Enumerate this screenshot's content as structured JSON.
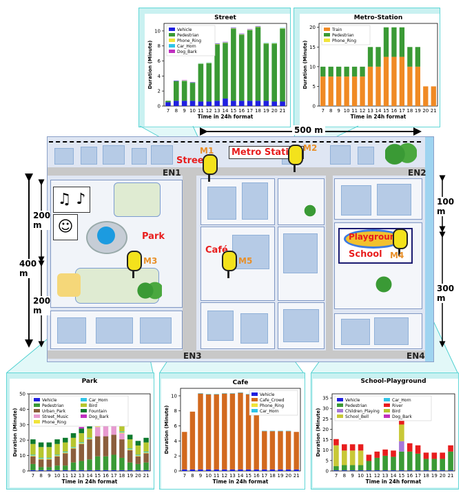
{
  "colors": {
    "vehicle": "#1f1fe0",
    "pedestrian": "#3a9a35",
    "phone_ring": "#f0e43a",
    "car_horn": "#2fc4e8",
    "dog_bark": "#c02fc0",
    "train": "#f08a24",
    "urban_park": "#8b5e3c",
    "street_music": "#e79ad0",
    "bird": "#b6c62f",
    "fountain": "#0e7a2e",
    "cafe_crowd": "#d2691e",
    "children_playing": "#a678d8",
    "school_bell": "#c8c836",
    "river": "#e81d1d"
  },
  "map": {
    "width_label": "500 m",
    "total_height_label": "400\nm",
    "h200a": "200\nm",
    "h200b": "200\nm",
    "h100": "100\nm",
    "h300": "300\nm",
    "en1": "EN1",
    "en2": "EN2",
    "en3": "EN3",
    "en4": "EN4",
    "street": "Street",
    "metro": "Metro Station",
    "park": "Park",
    "cafe": "Café",
    "playground": "Playground",
    "school": "School",
    "m1": "M1",
    "m2": "M2",
    "m3": "M3",
    "m4": "M4",
    "m5": "M5"
  },
  "chart_data": [
    {
      "id": "street",
      "type": "bar",
      "title": "Street",
      "xlabel": "Time in 24h format",
      "ylabel": "Duration (Minute)",
      "categories": [
        "7",
        "8",
        "9",
        "10",
        "11",
        "12",
        "13",
        "14",
        "15",
        "16",
        "17",
        "18",
        "19",
        "20",
        "21"
      ],
      "ylim": [
        0,
        11
      ],
      "yticks": [
        "0",
        "2",
        "4",
        "6",
        "8",
        "10"
      ],
      "series": [
        {
          "name": "Vehicle",
          "color": "#1f1fe0",
          "values": [
            0.5,
            0.7,
            0.7,
            0.7,
            0.6,
            0.6,
            0.7,
            1.0,
            0.7,
            0.7,
            0.7,
            0.7,
            0.7,
            0.6,
            0.6
          ]
        },
        {
          "name": "Pedestrian",
          "color": "#3a9a35",
          "values": [
            0.2,
            2.6,
            2.6,
            2.4,
            5.0,
            5.1,
            7.5,
            7.4,
            9.6,
            8.8,
            9.4,
            9.8,
            7.6,
            7.7,
            9.7
          ]
        },
        {
          "name": "Phone_Ring",
          "color": "#f0e43a",
          "values": [
            0,
            0,
            0.05,
            0,
            0.05,
            0.05,
            0.05,
            0.05,
            0.05,
            0.05,
            0.05,
            0.05,
            0.05,
            0.05,
            0.05
          ]
        },
        {
          "name": "Car_Horn",
          "color": "#2fc4e8",
          "values": [
            0,
            0.05,
            0.05,
            0.05,
            0.05,
            0.05,
            0.05,
            0.05,
            0.05,
            0.05,
            0.05,
            0.05,
            0.05,
            0.05,
            0.05
          ]
        },
        {
          "name": "Dog_Bark",
          "color": "#c02fc0",
          "values": [
            0,
            0.05,
            0.05,
            0.05,
            0,
            0,
            0.05,
            0.05,
            0.05,
            0.05,
            0.05,
            0.05,
            0,
            0,
            0
          ]
        }
      ]
    },
    {
      "id": "metro",
      "type": "bar",
      "title": "Metro-Station",
      "xlabel": "Time in 24h format",
      "ylabel": "Duration (Minute)",
      "categories": [
        "7",
        "8",
        "9",
        "10",
        "11",
        "12",
        "13",
        "14",
        "15",
        "16",
        "17",
        "18",
        "19",
        "20",
        "21"
      ],
      "ylim": [
        0,
        21
      ],
      "yticks": [
        "0",
        "5",
        "10",
        "15",
        "20"
      ],
      "series": [
        {
          "name": "Train",
          "color": "#f08a24",
          "values": [
            7.5,
            7.5,
            7.5,
            7.5,
            7.5,
            7.5,
            10,
            10,
            12.5,
            12.5,
            12.5,
            10,
            10,
            5,
            5
          ]
        },
        {
          "name": "Pedestrian",
          "color": "#3a9a35",
          "values": [
            2.5,
            2.5,
            2.5,
            2.5,
            2.5,
            2.5,
            5,
            5,
            7.5,
            7.5,
            7.5,
            5,
            5,
            0,
            0
          ]
        },
        {
          "name": "Phone_Ring",
          "color": "#f0e43a",
          "values": [
            0,
            0,
            0,
            0,
            0,
            0,
            0,
            0,
            0,
            0,
            0,
            0,
            0,
            0,
            0
          ]
        }
      ]
    },
    {
      "id": "park",
      "type": "bar",
      "title": "Park",
      "xlabel": "Time in 24h format",
      "ylabel": "Duration (Minute)",
      "categories": [
        "7",
        "8",
        "9",
        "10",
        "11",
        "12",
        "13",
        "14",
        "15",
        "16",
        "17",
        "18",
        "19",
        "20",
        "21"
      ],
      "ylim": [
        0,
        50
      ],
      "yticks": [
        "0",
        "10",
        "20",
        "30",
        "40",
        "50"
      ],
      "series": [
        {
          "name": "Vehicle",
          "color": "#1f1fe0",
          "values": [
            0.5,
            0.5,
            0.5,
            0.5,
            0.5,
            0.5,
            0.5,
            0.5,
            0.5,
            0.5,
            0.5,
            0.5,
            0.5,
            0.5,
            0.5
          ]
        },
        {
          "name": "Pedestrian",
          "color": "#3a9a35",
          "values": [
            4,
            2,
            2,
            3,
            3,
            5,
            6,
            7,
            9,
            9,
            10,
            8,
            5,
            4,
            5
          ]
        },
        {
          "name": "Urban_Park",
          "color": "#8b5e3c",
          "values": [
            5,
            5,
            5,
            6,
            8,
            9,
            11,
            13,
            13,
            13,
            13,
            12,
            8,
            5,
            6
          ]
        },
        {
          "name": "Street_Music",
          "color": "#e79ad0",
          "values": [
            0,
            0,
            0,
            0,
            0,
            0,
            0,
            0,
            6,
            8,
            8,
            4,
            0,
            0,
            0
          ]
        },
        {
          "name": "Phone_Ring",
          "color": "#f0e43a",
          "values": [
            0.5,
            0.5,
            0.5,
            0.5,
            0.5,
            0.5,
            0.5,
            0.5,
            0.5,
            0.5,
            0.5,
            0.5,
            0.5,
            0.5,
            0.5
          ]
        },
        {
          "name": "Car_Horn",
          "color": "#2fc4e8",
          "values": [
            0.5,
            0.5,
            0.5,
            0.5,
            0.5,
            0.5,
            0.5,
            0.5,
            0.5,
            0.5,
            0.5,
            0.5,
            0.5,
            0.5,
            0.5
          ]
        },
        {
          "name": "Bird",
          "color": "#b6c62f",
          "values": [
            7,
            7,
            7,
            7,
            6,
            6,
            6,
            6,
            6,
            6,
            6,
            6,
            6,
            6,
            6
          ]
        },
        {
          "name": "Fountain",
          "color": "#0e7a2e",
          "values": [
            3,
            3,
            3,
            3,
            3,
            3,
            3,
            3,
            3,
            3,
            3,
            3,
            3,
            3,
            3
          ]
        },
        {
          "name": "Dog_Bark",
          "color": "#c02fc0",
          "values": [
            0,
            0,
            0,
            0,
            0,
            0,
            1,
            1,
            1,
            1,
            1,
            0,
            0,
            0,
            0
          ]
        }
      ]
    },
    {
      "id": "cafe",
      "type": "bar",
      "title": "Cafe",
      "xlabel": "Time in 24h format",
      "ylabel": "Duration (Minute)",
      "categories": [
        "7",
        "8",
        "9",
        "10",
        "11",
        "12",
        "13",
        "14",
        "15",
        "16",
        "17",
        "18",
        "19",
        "20",
        "21"
      ],
      "ylim": [
        0,
        11
      ],
      "yticks": [
        "0",
        "2",
        "4",
        "6",
        "8",
        "10"
      ],
      "series": [
        {
          "name": "Vehicle",
          "color": "#1f1fe0",
          "values": [
            0.2,
            0.2,
            0.2,
            0.2,
            0.2,
            0.2,
            0.2,
            0.2,
            0.2,
            0.2,
            0.2,
            0.2,
            0.2,
            0.2,
            0.2
          ]
        },
        {
          "name": "Cafe_Crowd",
          "color": "#d2691e",
          "values": [
            5,
            7.7,
            10.1,
            10,
            10,
            10.1,
            10.1,
            10.2,
            10,
            7.4,
            5.1,
            5.1,
            5.1,
            5.1,
            5
          ]
        },
        {
          "name": "Phone_Ring",
          "color": "#f0e43a",
          "values": [
            0,
            0,
            0,
            0,
            0,
            0,
            0,
            0,
            0,
            0,
            0,
            0,
            0,
            0,
            0
          ]
        },
        {
          "name": "Car_Horn",
          "color": "#2fc4e8",
          "values": [
            0,
            0,
            0.05,
            0.05,
            0.05,
            0.05,
            0.05,
            0.05,
            0.05,
            0.05,
            0.05,
            0.05,
            0.05,
            0.05,
            0
          ]
        }
      ]
    },
    {
      "id": "school",
      "type": "bar",
      "title": "School-Playground",
      "xlabel": "Time in 24h format",
      "ylabel": "Duration (Minute)",
      "categories": [
        "7",
        "8",
        "9",
        "10",
        "11",
        "12",
        "13",
        "14",
        "15",
        "16",
        "17",
        "18",
        "19",
        "20",
        "21"
      ],
      "ylim": [
        0,
        37
      ],
      "yticks": [
        "0",
        "5",
        "10",
        "15",
        "20",
        "25",
        "30",
        "35"
      ],
      "series": [
        {
          "name": "Vehicle",
          "color": "#1f1fe0",
          "values": [
            0.3,
            0.3,
            0.3,
            0.3,
            0.3,
            0.3,
            0.3,
            0.3,
            0.3,
            0.3,
            0.3,
            0.3,
            0.3,
            0.3,
            0.3
          ]
        },
        {
          "name": "Pedestrian",
          "color": "#3a9a35",
          "values": [
            2,
            2.5,
            2.5,
            2.5,
            4.5,
            6,
            7,
            6.5,
            9,
            9,
            8,
            5.5,
            5.5,
            5.5,
            9
          ]
        },
        {
          "name": "Children_Playing",
          "color": "#a678d8",
          "values": [
            0,
            0,
            0,
            0,
            0,
            0,
            0,
            0,
            5,
            0,
            0,
            0,
            0,
            0,
            0
          ]
        },
        {
          "name": "School_Bell",
          "color": "#c8c836",
          "values": [
            10,
            7,
            7,
            7,
            0,
            0,
            0,
            0,
            8,
            0,
            0,
            0,
            0,
            0,
            0
          ]
        },
        {
          "name": "Car_Horn",
          "color": "#2fc4e8",
          "values": [
            0,
            0,
            0,
            0,
            0,
            0,
            0,
            0,
            0,
            0,
            0,
            0,
            0,
            0,
            0
          ]
        },
        {
          "name": "River",
          "color": "#e81d1d",
          "values": [
            3,
            3,
            3,
            3,
            3,
            3,
            3,
            3,
            3,
            4,
            4,
            3,
            3,
            3,
            3
          ]
        },
        {
          "name": "Bird",
          "color": "#b6c62f",
          "values": [
            0,
            0,
            0,
            0,
            0,
            0,
            0,
            0,
            0,
            0,
            0,
            0,
            0,
            0,
            0
          ]
        },
        {
          "name": "Dog_Bark",
          "color": "#c02fc0",
          "values": [
            0,
            0,
            0,
            0,
            0,
            0,
            0,
            0,
            0,
            0,
            0,
            0,
            0,
            0,
            0
          ]
        }
      ]
    }
  ]
}
